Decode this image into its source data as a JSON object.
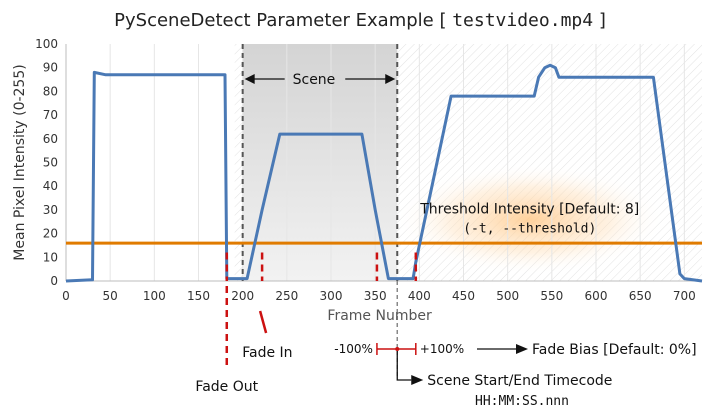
{
  "chart_data": {
    "type": "line",
    "title": "PySceneDetect Parameter Example",
    "title_file": "testvideo.mp4",
    "xlabel": "Frame Number",
    "ylabel": "Mean Pixel Intensity (0-255)",
    "xlim": [
      0,
      720
    ],
    "ylim": [
      0,
      100
    ],
    "xticks": [
      0,
      50,
      100,
      150,
      200,
      250,
      300,
      350,
      400,
      450,
      500,
      550,
      600,
      650,
      700
    ],
    "yticks": [
      0,
      10,
      20,
      30,
      40,
      50,
      60,
      70,
      80,
      90,
      100
    ],
    "grid": "vertical",
    "series": [
      {
        "name": "",
        "color": "#4a79b5",
        "points": [
          [
            0,
            0
          ],
          [
            30,
            0.5
          ],
          [
            32,
            88
          ],
          [
            45,
            87
          ],
          [
            60,
            87
          ],
          [
            90,
            87
          ],
          [
            130,
            87
          ],
          [
            160,
            87
          ],
          [
            180,
            87
          ],
          [
            182,
            1
          ],
          [
            200,
            1
          ],
          [
            205,
            1
          ],
          [
            222,
            30
          ],
          [
            242,
            62
          ],
          [
            260,
            62
          ],
          [
            300,
            62
          ],
          [
            335,
            62
          ],
          [
            350,
            30
          ],
          [
            365,
            1
          ],
          [
            375,
            1
          ],
          [
            393,
            1
          ],
          [
            396,
            8
          ],
          [
            420,
            50
          ],
          [
            436,
            78
          ],
          [
            470,
            78
          ],
          [
            500,
            78
          ],
          [
            530,
            78
          ],
          [
            535,
            86
          ],
          [
            542,
            90
          ],
          [
            548,
            91
          ],
          [
            554,
            90
          ],
          [
            558,
            86
          ],
          [
            600,
            86
          ],
          [
            630,
            86
          ],
          [
            665,
            86
          ],
          [
            695,
            3
          ],
          [
            700,
            1
          ],
          [
            720,
            0
          ]
        ]
      }
    ],
    "threshold": {
      "value": 16,
      "color": "#e07b00"
    },
    "scene_region": {
      "start": 200,
      "end": 375
    },
    "annotations": {
      "scene_label": "Scene",
      "threshold_label": "Threshold Intensity [Default: 8]",
      "threshold_option": "(-t, --threshold)",
      "fade_out": "Fade Out",
      "fade_in": "Fade In",
      "bias_neg": "-100%",
      "bias_pos": "+100%",
      "fade_bias": "Fade Bias [Default: 0%]",
      "timecode_label": "Scene Start/End Timecode",
      "timecode_format": "HH:MM:SS.nnn"
    },
    "marker_frames": [
      182,
      222,
      352,
      396
    ],
    "colors": {
      "red_marker": "#cc1111",
      "scene_shade": "#d9d9d9",
      "glow": "#ffcc88"
    }
  }
}
